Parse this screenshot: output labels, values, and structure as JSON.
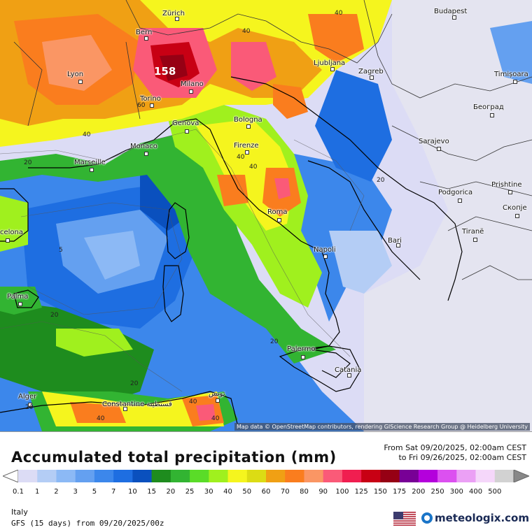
{
  "map": {
    "max_value": "158",
    "attribution": "Map data © OpenStreetMap contributors, rendering GIScience Research Group @ Heidelberg University",
    "cities": [
      {
        "id": "zurich",
        "name": "Zürich"
      },
      {
        "id": "bern",
        "name": "Bern"
      },
      {
        "id": "lyon",
        "name": "Lyon"
      },
      {
        "id": "milano",
        "name": "Milano"
      },
      {
        "id": "torino",
        "name": "Torino"
      },
      {
        "id": "genova",
        "name": "Genova"
      },
      {
        "id": "monaco",
        "name": "Monaco"
      },
      {
        "id": "marseille",
        "name": "Marseille"
      },
      {
        "id": "bologna",
        "name": "Bologna"
      },
      {
        "id": "firenze",
        "name": "Firenze"
      },
      {
        "id": "roma",
        "name": "Roma"
      },
      {
        "id": "napoli",
        "name": "Napoli"
      },
      {
        "id": "bari",
        "name": "Bari"
      },
      {
        "id": "palermo",
        "name": "Palermo"
      },
      {
        "id": "catania",
        "name": "Catania"
      },
      {
        "id": "ljubljana",
        "name": "Ljubljana"
      },
      {
        "id": "zagreb",
        "name": "Zagreb"
      },
      {
        "id": "budapest",
        "name": "Budapest"
      },
      {
        "id": "timisoara",
        "name": "Timișoara"
      },
      {
        "id": "beograd",
        "name": "Београд"
      },
      {
        "id": "sarajevo",
        "name": "Sarajevo"
      },
      {
        "id": "podgorica",
        "name": "Podgorica"
      },
      {
        "id": "pristine",
        "name": "Prishtine"
      },
      {
        "id": "skopje",
        "name": "Скопје"
      },
      {
        "id": "tirane",
        "name": "Tiranë"
      },
      {
        "id": "barcelona",
        "name": "celona"
      },
      {
        "id": "palma",
        "name": "Palma"
      },
      {
        "id": "alger",
        "name": "Alger"
      },
      {
        "id": "constantine",
        "name": "Constantine قسنطينة"
      },
      {
        "id": "tunis",
        "name": "تونس"
      }
    ],
    "contour_labels": [
      "40",
      "40",
      "40",
      "40",
      "40",
      "20",
      "20",
      "5",
      "20",
      "20",
      "20",
      "20",
      "40",
      "40",
      "60",
      "40"
    ]
  },
  "legend": {
    "title": "Accumulated total precipitation (mm)",
    "from": "From Sat 09/20/2025, 02:00am CEST",
    "to": "to Fri 09/26/2025, 02:00am CEST",
    "scale": [
      {
        "label": "0.1",
        "color": "#dcdcf5"
      },
      {
        "label": "1",
        "color": "#b4cdf5"
      },
      {
        "label": "2",
        "color": "#8cb9f5"
      },
      {
        "label": "3",
        "color": "#64a0f0"
      },
      {
        "label": "5",
        "color": "#3c87eb"
      },
      {
        "label": "7",
        "color": "#1e6ee1"
      },
      {
        "label": "10",
        "color": "#0a50be"
      },
      {
        "label": "15",
        "color": "#1e8c1e"
      },
      {
        "label": "20",
        "color": "#32b432"
      },
      {
        "label": "25",
        "color": "#5adc28"
      },
      {
        "label": "30",
        "color": "#a0f01e"
      },
      {
        "label": "40",
        "color": "#f5f51e"
      },
      {
        "label": "50",
        "color": "#dcdc14"
      },
      {
        "label": "60",
        "color": "#f0a014"
      },
      {
        "label": "70",
        "color": "#fa7d1e"
      },
      {
        "label": "80",
        "color": "#fa9664"
      },
      {
        "label": "90",
        "color": "#fa5a78"
      },
      {
        "label": "100",
        "color": "#f01e50"
      },
      {
        "label": "125",
        "color": "#c80014"
      },
      {
        "label": "150",
        "color": "#960014"
      },
      {
        "label": "175",
        "color": "#780096"
      },
      {
        "label": "200",
        "color": "#b400dc"
      },
      {
        "label": "250",
        "color": "#dc50f0"
      },
      {
        "label": "300",
        "color": "#eba0f5"
      },
      {
        "label": "400",
        "color": "#f5d7fa"
      },
      {
        "label": "500",
        "color": "#d2d2d2"
      }
    ]
  },
  "footer": {
    "region": "Italy",
    "model": "GFS (15 days) from 09/20/2025/00z",
    "brand": "meteologix.com"
  }
}
